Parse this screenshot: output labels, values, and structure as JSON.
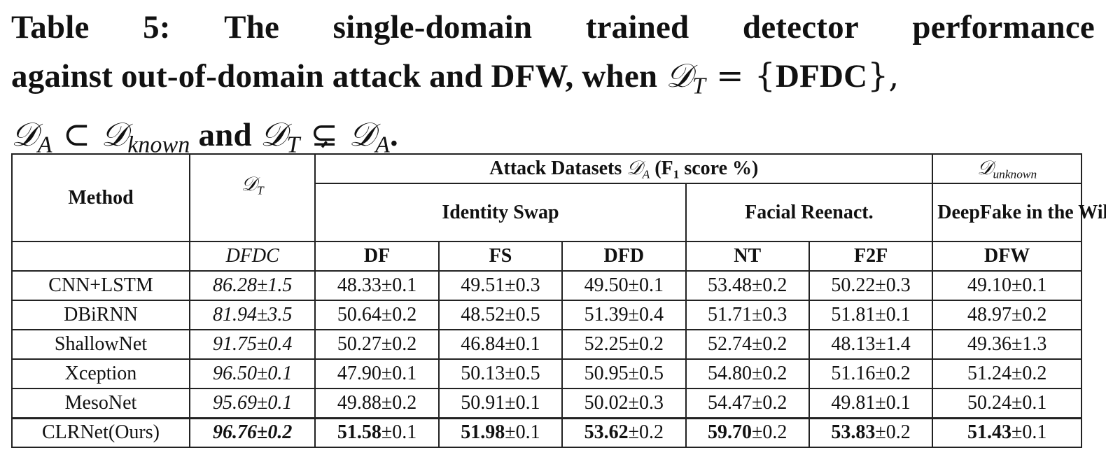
{
  "caption": {
    "line1_words": [
      "Table",
      "5:",
      "The",
      "single-domain",
      "trained",
      "detector",
      "performance"
    ],
    "line2_prefix": "against out-of-domain attack and DFW, when ",
    "line2_math_dt": "𝒟",
    "line2_math_dt_sub": "T",
    "line2_math_eq": " = {",
    "line2_set": "DFDC",
    "line2_suffix": "},",
    "line3_da": "𝒟",
    "line3_da_sub": "A",
    "line3_subset": " ⊂ ",
    "line3_dk": "𝒟",
    "line3_dk_sub": "known",
    "line3_and": " and ",
    "line3_dt": "𝒟",
    "line3_dt_sub": "T",
    "line3_subsetneq": " ⊊ ",
    "line3_da2": "𝒟",
    "line3_da2_sub": "A",
    "line3_end": "."
  },
  "table": {
    "header": {
      "method": "Method",
      "dt_symbol": "𝒟",
      "dt_sub": "T",
      "attack_prefix": "Attack Datasets ",
      "attack_symbol": "𝒟",
      "attack_sub": "A",
      "attack_suffix_pre": " (F",
      "attack_suffix_sub": "1",
      "attack_suffix_post": " score %)",
      "unknown_symbol": "𝒟",
      "unknown_sub": "unknown",
      "identity_swap": "Identity Swap",
      "facial_reenact": "Facial Reenact.",
      "deepfake_wild": "DeepFake in the Wild",
      "dt_value": "DFDC",
      "columns": [
        "DF",
        "FS",
        "DFD",
        "NT",
        "F2F",
        "DFW"
      ]
    },
    "rows": [
      {
        "method": "CNN+LSTM",
        "dt": "86.28±1.5",
        "values": [
          "48.33±0.1",
          "49.51±0.3",
          "49.50±0.1",
          "53.48±0.2",
          "50.22±0.3",
          "49.10±0.1"
        ]
      },
      {
        "method": "DBiRNN",
        "dt": "81.94±3.5",
        "values": [
          "50.64±0.2",
          "48.52±0.5",
          "51.39±0.4",
          "51.71±0.3",
          "51.81±0.1",
          "48.97±0.2"
        ]
      },
      {
        "method": "ShallowNet",
        "dt": "91.75±0.4",
        "values": [
          "50.27±0.2",
          "46.84±0.1",
          "52.25±0.2",
          "52.74±0.2",
          "48.13±1.4",
          "49.36±1.3"
        ]
      },
      {
        "method": "Xception",
        "dt": "96.50±0.1",
        "values": [
          "47.90±0.1",
          "50.13±0.5",
          "50.95±0.5",
          "54.80±0.2",
          "51.16±0.2",
          "51.24±0.2"
        ]
      },
      {
        "method": "MesoNet",
        "dt": "95.69±0.1",
        "values": [
          "49.88±0.2",
          "50.91±0.1",
          "50.02±0.3",
          "54.47±0.2",
          "49.81±0.1",
          "50.24±0.1"
        ]
      }
    ],
    "best_row": {
      "method": "CLRNet(Ours)",
      "dt_main": "96.76",
      "dt_err": "±0.2",
      "values_main": [
        "51.58",
        "51.98",
        "53.62",
        "59.70",
        "53.83",
        "51.43"
      ],
      "values_err": [
        "±0.1",
        "±0.1",
        "±0.2",
        "±0.2",
        "±0.2",
        "±0.1"
      ]
    }
  }
}
